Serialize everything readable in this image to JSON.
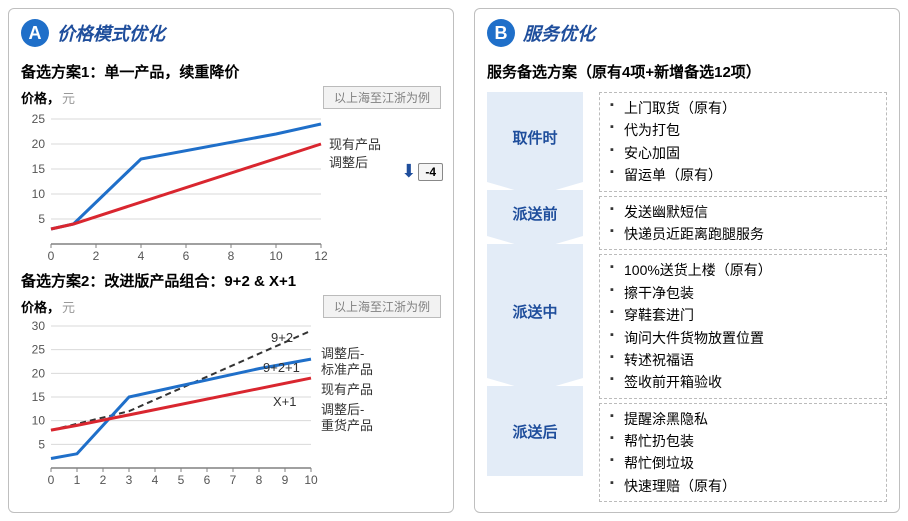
{
  "panel_a": {
    "badge": "A",
    "title": "价格模式优化",
    "chart1": {
      "title": "备选方案1：单一产品，续重降价",
      "ylabel": "价格，",
      "yunit": "元",
      "example": "以上海至江浙为例",
      "type": "line",
      "xlim": [
        0,
        12
      ],
      "ylim": [
        0,
        25
      ],
      "xticks": [
        0,
        2,
        4,
        6,
        8,
        10,
        12
      ],
      "yticks": [
        5,
        10,
        15,
        20,
        25
      ],
      "grid_color": "#d9d9d9",
      "axis_color": "#808080",
      "series": [
        {
          "label": "现有产品",
          "color": "#1f6fc9",
          "width": 3,
          "x": [
            0,
            1,
            4,
            10,
            12
          ],
          "y": [
            3,
            4,
            17,
            22,
            24
          ]
        },
        {
          "label": "调整后",
          "color": "#d9262f",
          "width": 3,
          "x": [
            0,
            1,
            12
          ],
          "y": [
            3,
            4,
            20
          ]
        }
      ],
      "legend_fontsize": 13,
      "delta": "-4"
    },
    "chart2": {
      "title": "备选方案2：改进版产品组合：9+2 & X+1",
      "ylabel": "价格，",
      "yunit": "元",
      "example": "以上海至江浙为例",
      "type": "line",
      "xlim": [
        0,
        10
      ],
      "ylim": [
        0,
        30
      ],
      "xticks": [
        0,
        1,
        2,
        3,
        4,
        5,
        6,
        7,
        8,
        9,
        10
      ],
      "yticks": [
        5,
        10,
        15,
        20,
        25,
        30
      ],
      "grid_color": "#d9d9d9",
      "axis_color": "#808080",
      "series": [
        {
          "label": "调整后-标准产品",
          "annot": "9+2",
          "color": "#333333",
          "width": 2,
          "dash": "6,4",
          "x": [
            0,
            3,
            10
          ],
          "y": [
            8,
            12,
            29
          ]
        },
        {
          "label": "现有产品",
          "annot": "9+2+1",
          "color": "#1f6fc9",
          "width": 3,
          "x": [
            0,
            1,
            3,
            8,
            10
          ],
          "y": [
            2,
            3,
            15,
            21,
            23
          ]
        },
        {
          "label": "调整后-重货产品",
          "annot": "X+1",
          "color": "#d9262f",
          "width": 3,
          "x": [
            0,
            1,
            10
          ],
          "y": [
            8,
            9,
            19
          ]
        }
      ],
      "legend_fontsize": 13
    }
  },
  "panel_b": {
    "badge": "B",
    "title": "服务优化",
    "subtitle": "服务备选方案（原有4项+新增备选12项）",
    "stages": [
      {
        "name": "取件时",
        "items": [
          "上门取货（原有）",
          "代为打包",
          "安心加固",
          "留运单（原有）"
        ]
      },
      {
        "name": "派送前",
        "items": [
          "发送幽默短信",
          "快递员近距离跑腿服务"
        ]
      },
      {
        "name": "派送中",
        "items": [
          "100%送货上楼（原有）",
          "擦干净包装",
          "穿鞋套进门",
          "询问大件货物放置位置",
          "转述祝福语",
          "签收前开箱验收"
        ]
      },
      {
        "name": "派送后",
        "items": [
          "提醒涂黑隐私",
          "帮忙扔包装",
          "帮忙倒垃圾",
          "快速理赔（原有）"
        ]
      }
    ],
    "stage_bg": "#e3ecf7",
    "stage_color": "#1f4e9c"
  }
}
